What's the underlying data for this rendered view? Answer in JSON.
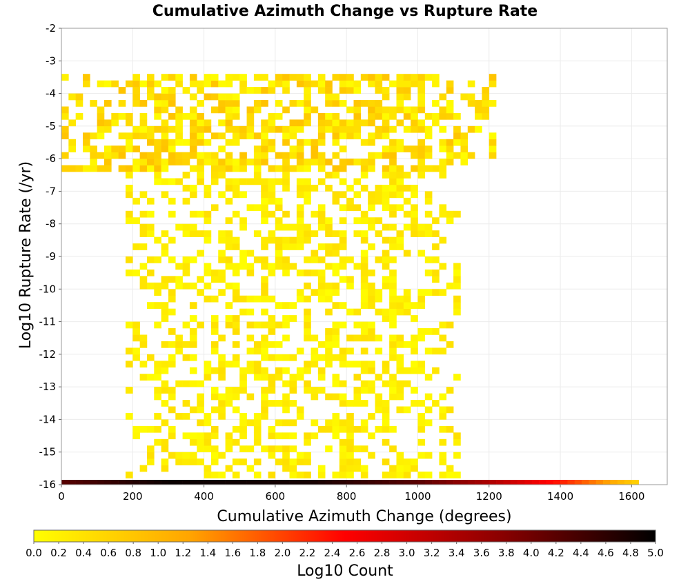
{
  "chart_data": {
    "type": "heatmap",
    "title": "Cumulative Azimuth Change vs Rupture Rate",
    "xlabel": "Cumulative Azimuth Change (degrees)",
    "ylabel": "Log10 Rupture Rate (/yr)",
    "xlim": [
      0,
      1700
    ],
    "ylim": [
      -16,
      -2
    ],
    "x_ticks": [
      "0",
      "200",
      "400",
      "600",
      "800",
      "1000",
      "1200",
      "1400",
      "1600"
    ],
    "y_ticks": [
      "-2",
      "-3",
      "-4",
      "-5",
      "-6",
      "-7",
      "-8",
      "-9",
      "-10",
      "-11",
      "-12",
      "-13",
      "-14",
      "-15",
      "-16"
    ],
    "grid": true,
    "colorbar": {
      "label": "Log10 Count",
      "range": [
        0.0,
        5.0
      ],
      "ticks": [
        "0.0",
        "0.2",
        "0.4",
        "0.6",
        "0.8",
        "1.0",
        "1.2",
        "1.4",
        "1.6",
        "1.8",
        "2.0",
        "2.2",
        "2.4",
        "2.6",
        "2.8",
        "3.0",
        "3.2",
        "3.4",
        "3.6",
        "3.8",
        "4.0",
        "4.2",
        "4.4",
        "4.6",
        "4.8",
        "5.0"
      ],
      "colors": [
        "#ffff00",
        "#ffa500",
        "#ff0000",
        "#8b0000",
        "#000000"
      ]
    },
    "bin_size": {
      "x_degrees": 20,
      "y_log10": 0.2
    },
    "regions": [
      {
        "x": [
          0,
          1220
        ],
        "y": [
          -6.4,
          -3.4
        ],
        "peak_log10_count": 0.85,
        "density": 0.6
      },
      {
        "x": [
          180,
          1120
        ],
        "y": [
          -15.8,
          -6.4
        ],
        "peak_log10_count": 0.45,
        "density": 0.45
      }
    ],
    "bottom_row": {
      "y": -16,
      "x": [
        0,
        1620
      ],
      "log10_count_profile": [
        {
          "x": 0,
          "value": 4.2
        },
        {
          "x": 300,
          "value": 4.9
        },
        {
          "x": 700,
          "value": 4.8
        },
        {
          "x": 1000,
          "value": 4.2
        },
        {
          "x": 1200,
          "value": 3.4
        },
        {
          "x": 1400,
          "value": 2.3
        },
        {
          "x": 1620,
          "value": 0.6
        }
      ]
    }
  }
}
